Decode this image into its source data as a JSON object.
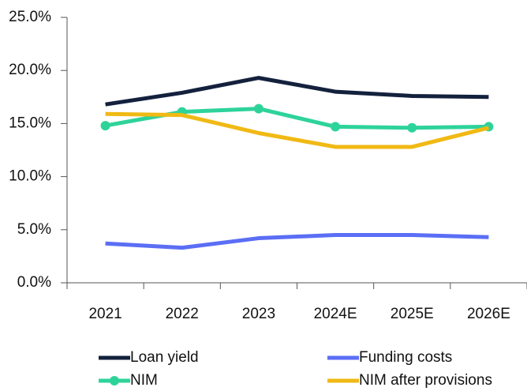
{
  "chart_data": {
    "type": "line",
    "categories": [
      "2021",
      "2022",
      "2023",
      "2024E",
      "2025E",
      "2026E"
    ],
    "series": [
      {
        "name": "Loan yield",
        "color": "#14213d",
        "values": [
          16.8,
          17.9,
          19.3,
          18.0,
          17.6,
          17.5
        ]
      },
      {
        "name": "Funding costs",
        "color": "#5b6ef5",
        "values": [
          3.7,
          3.3,
          4.2,
          4.5,
          4.5,
          4.3
        ]
      },
      {
        "name": "NIM",
        "color": "#2ed39a",
        "values": [
          14.8,
          16.1,
          16.4,
          14.7,
          14.6,
          14.7
        ],
        "markers": true
      },
      {
        "name": "NIM after provisions",
        "color": "#f0b914",
        "values": [
          15.9,
          15.8,
          14.1,
          12.8,
          12.8,
          14.6
        ]
      }
    ],
    "ylim": [
      0,
      25
    ],
    "yticks": [
      {
        "value": 0,
        "label": "0.0%"
      },
      {
        "value": 5,
        "label": "5.0%"
      },
      {
        "value": 10,
        "label": "10.0%"
      },
      {
        "value": 15,
        "label": "15.0%"
      },
      {
        "value": 20,
        "label": "20.0%"
      },
      {
        "value": 25,
        "label": "25.0%"
      }
    ],
    "grid": false
  }
}
